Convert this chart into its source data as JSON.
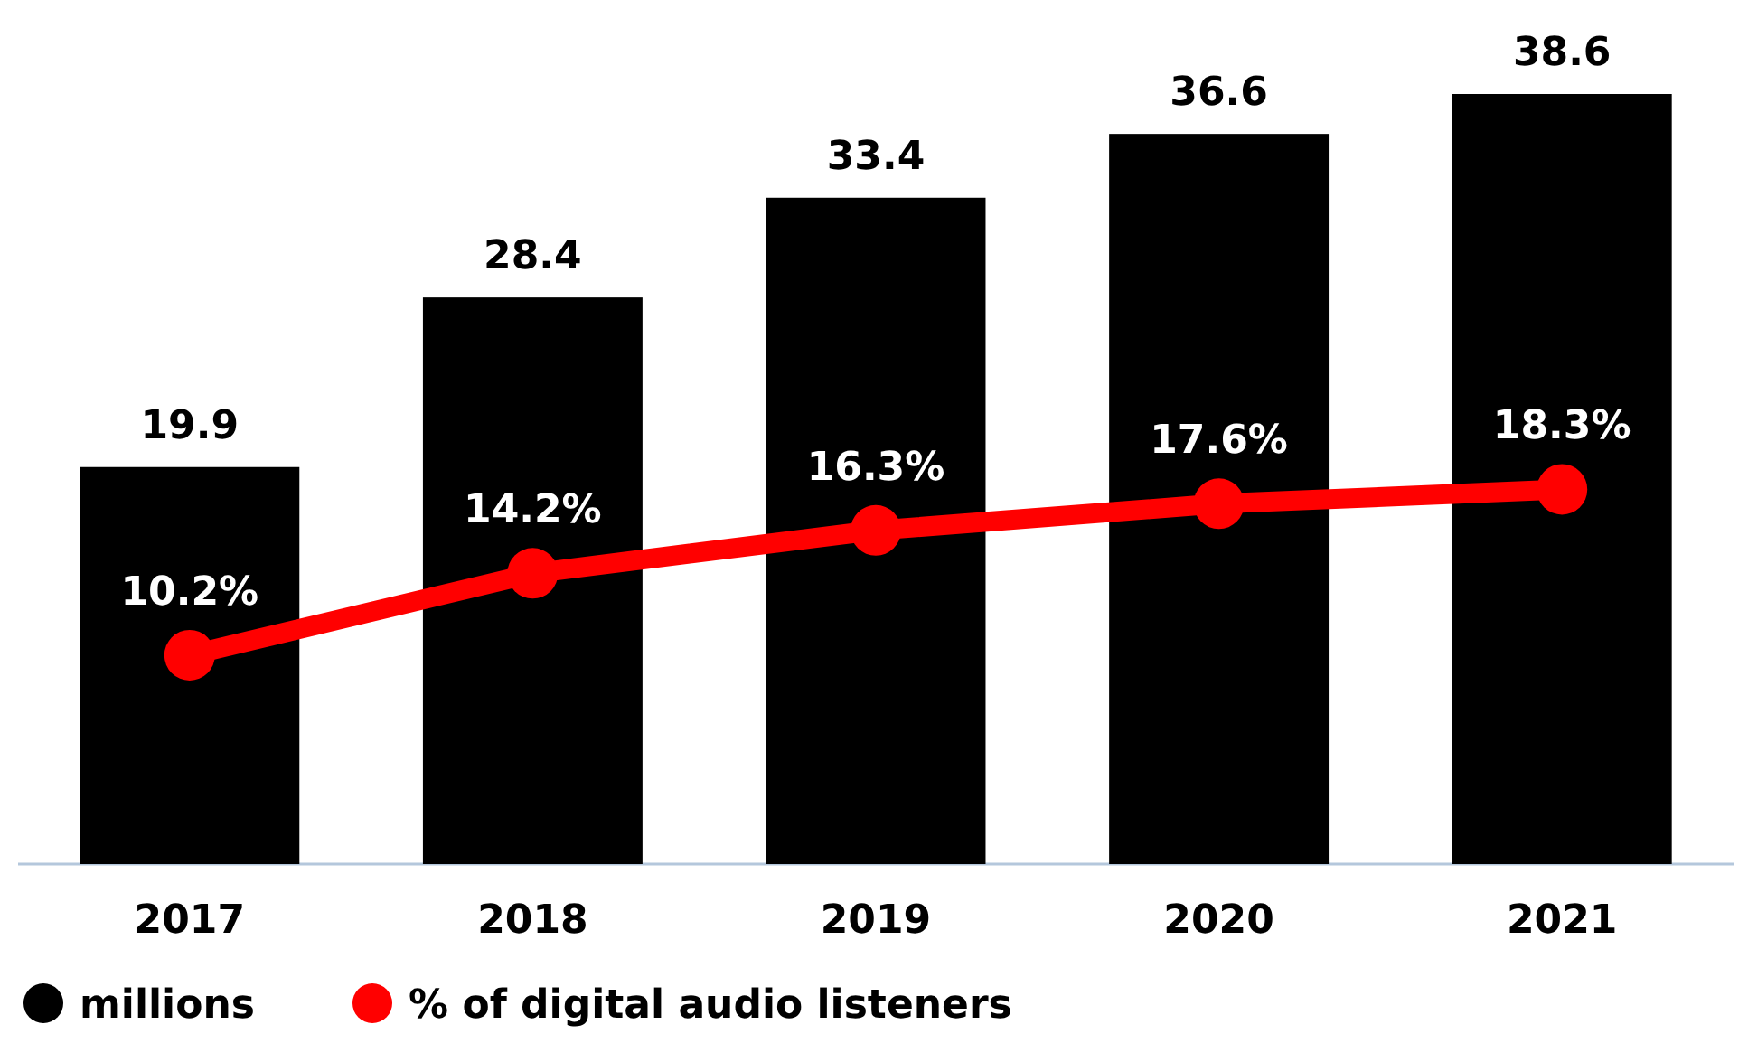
{
  "chart_data": {
    "type": "bar",
    "categories": [
      "2017",
      "2018",
      "2019",
      "2020",
      "2021"
    ],
    "series": [
      {
        "name": "millions",
        "color": "#000000",
        "values": [
          19.9,
          28.4,
          33.4,
          36.6,
          38.6
        ]
      },
      {
        "name": "% of digital audio listeners",
        "type": "line",
        "axis": "y2",
        "color": "#ff0000",
        "values": [
          10.2,
          14.2,
          16.3,
          17.6,
          18.3
        ],
        "value_labels": [
          "10.2%",
          "14.2%",
          "16.3%",
          "17.6%",
          "18.3%"
        ]
      }
    ],
    "data_labels": true,
    "tick_labels": "x",
    "legend": "bottom left",
    "marker": "circle",
    "grid": false
  }
}
